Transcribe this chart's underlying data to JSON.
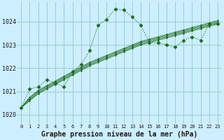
{
  "bg_color": "#cceeff",
  "grid_color": "#99cccc",
  "line_color": "#1a6b1a",
  "xlabel": "Graphe pression niveau de la mer (hPa)",
  "ytick_values": [
    1020,
    1021,
    1022,
    1023,
    1024
  ],
  "ylim": [
    1019.6,
    1024.85
  ],
  "xlim": [
    -0.5,
    23.5
  ],
  "main_series": [
    1020.3,
    1021.1,
    1021.2,
    1021.5,
    1021.35,
    1021.2,
    1021.85,
    1022.15,
    1022.75,
    1023.85,
    1024.1,
    1024.55,
    1024.5,
    1024.2,
    1023.85,
    1023.1,
    1023.1,
    1023.0,
    1022.9,
    1023.2,
    1023.35,
    1023.2,
    1023.9,
    1023.9
  ],
  "trend_series": [
    [
      1020.3,
      1020.6,
      1020.9,
      1021.1,
      1021.3,
      1021.5,
      1021.7,
      1021.9,
      1022.1,
      1022.25,
      1022.4,
      1022.55,
      1022.7,
      1022.85,
      1023.0,
      1023.1,
      1023.2,
      1023.3,
      1023.4,
      1023.5,
      1023.6,
      1023.7,
      1023.8,
      1023.9
    ],
    [
      1020.3,
      1020.65,
      1020.95,
      1021.15,
      1021.35,
      1021.55,
      1021.75,
      1021.95,
      1022.15,
      1022.3,
      1022.45,
      1022.6,
      1022.75,
      1022.9,
      1023.05,
      1023.15,
      1023.25,
      1023.35,
      1023.45,
      1023.55,
      1023.65,
      1023.75,
      1023.85,
      1023.95
    ],
    [
      1020.3,
      1020.7,
      1021.0,
      1021.2,
      1021.4,
      1021.6,
      1021.8,
      1022.0,
      1022.2,
      1022.35,
      1022.5,
      1022.65,
      1022.8,
      1022.95,
      1023.1,
      1023.2,
      1023.3,
      1023.4,
      1023.5,
      1023.6,
      1023.7,
      1023.8,
      1023.9,
      1024.0
    ],
    [
      1020.3,
      1020.75,
      1021.05,
      1021.25,
      1021.45,
      1021.65,
      1021.85,
      1022.05,
      1022.25,
      1022.4,
      1022.55,
      1022.7,
      1022.85,
      1023.0,
      1023.15,
      1023.25,
      1023.35,
      1023.45,
      1023.55,
      1023.65,
      1023.75,
      1023.85,
      1023.95,
      1024.05
    ]
  ]
}
